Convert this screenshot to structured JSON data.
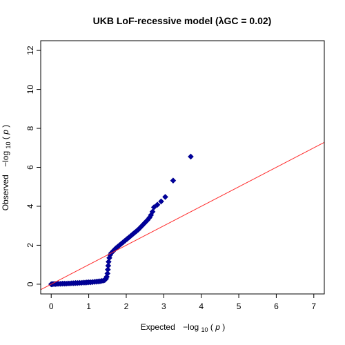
{
  "chart_data": {
    "type": "scatter",
    "title": "UKB LoF-recessive model (λGC = 0.02)",
    "xlabel": {
      "prefix": "Expected",
      "minus_log": "−log",
      "sub": "10",
      "open": "(",
      "var": "p",
      "close": ")"
    },
    "ylabel": {
      "prefix": "Observed",
      "minus_log": "−log",
      "sub": "10",
      "open": "(",
      "var": "p",
      "close": ")"
    },
    "xlim": [
      -0.28,
      7.28
    ],
    "ylim": [
      -0.5,
      12.5
    ],
    "xticks": [
      0,
      1,
      2,
      3,
      4,
      5,
      6,
      7
    ],
    "yticks": [
      0,
      2,
      4,
      6,
      8,
      10,
      12
    ],
    "grid": false,
    "legend": "none",
    "point_color": "#00008b",
    "point_fill": "#0000a0",
    "line_color": "#ff2a2a",
    "reference_line": {
      "intercept": 0,
      "slope": 1
    },
    "points": [
      {
        "x": 0.0,
        "y": 0.0
      },
      {
        "x": 0.02,
        "y": 0.0
      },
      {
        "x": 0.05,
        "y": 0.01
      },
      {
        "x": 0.08,
        "y": 0.01
      },
      {
        "x": 0.12,
        "y": 0.01
      },
      {
        "x": 0.16,
        "y": 0.02
      },
      {
        "x": 0.2,
        "y": 0.02
      },
      {
        "x": 0.25,
        "y": 0.02
      },
      {
        "x": 0.3,
        "y": 0.03
      },
      {
        "x": 0.35,
        "y": 0.03
      },
      {
        "x": 0.4,
        "y": 0.03
      },
      {
        "x": 0.45,
        "y": 0.04
      },
      {
        "x": 0.5,
        "y": 0.04
      },
      {
        "x": 0.55,
        "y": 0.05
      },
      {
        "x": 0.6,
        "y": 0.05
      },
      {
        "x": 0.65,
        "y": 0.06
      },
      {
        "x": 0.7,
        "y": 0.06
      },
      {
        "x": 0.75,
        "y": 0.07
      },
      {
        "x": 0.8,
        "y": 0.07
      },
      {
        "x": 0.85,
        "y": 0.08
      },
      {
        "x": 0.9,
        "y": 0.08
      },
      {
        "x": 0.95,
        "y": 0.09
      },
      {
        "x": 1.0,
        "y": 0.1
      },
      {
        "x": 1.05,
        "y": 0.1
      },
      {
        "x": 1.1,
        "y": 0.11
      },
      {
        "x": 1.15,
        "y": 0.12
      },
      {
        "x": 1.2,
        "y": 0.13
      },
      {
        "x": 1.25,
        "y": 0.14
      },
      {
        "x": 1.3,
        "y": 0.15
      },
      {
        "x": 1.35,
        "y": 0.17
      },
      {
        "x": 1.4,
        "y": 0.19
      },
      {
        "x": 1.43,
        "y": 0.22
      },
      {
        "x": 1.46,
        "y": 0.28
      },
      {
        "x": 1.48,
        "y": 0.38
      },
      {
        "x": 1.5,
        "y": 0.55
      },
      {
        "x": 1.51,
        "y": 0.75
      },
      {
        "x": 1.52,
        "y": 0.95
      },
      {
        "x": 1.53,
        "y": 1.15
      },
      {
        "x": 1.55,
        "y": 1.35
      },
      {
        "x": 1.57,
        "y": 1.5
      },
      {
        "x": 1.6,
        "y": 1.6
      },
      {
        "x": 1.64,
        "y": 1.68
      },
      {
        "x": 1.68,
        "y": 1.76
      },
      {
        "x": 1.72,
        "y": 1.84
      },
      {
        "x": 1.77,
        "y": 1.92
      },
      {
        "x": 1.82,
        "y": 2.0
      },
      {
        "x": 1.87,
        "y": 2.08
      },
      {
        "x": 1.92,
        "y": 2.16
      },
      {
        "x": 1.97,
        "y": 2.24
      },
      {
        "x": 2.02,
        "y": 2.32
      },
      {
        "x": 2.07,
        "y": 2.4
      },
      {
        "x": 2.12,
        "y": 2.48
      },
      {
        "x": 2.17,
        "y": 2.56
      },
      {
        "x": 2.22,
        "y": 2.64
      },
      {
        "x": 2.27,
        "y": 2.72
      },
      {
        "x": 2.32,
        "y": 2.8
      },
      {
        "x": 2.37,
        "y": 2.9
      },
      {
        "x": 2.42,
        "y": 3.0
      },
      {
        "x": 2.47,
        "y": 3.1
      },
      {
        "x": 2.52,
        "y": 3.2
      },
      {
        "x": 2.57,
        "y": 3.3
      },
      {
        "x": 2.62,
        "y": 3.42
      },
      {
        "x": 2.66,
        "y": 3.55
      },
      {
        "x": 2.7,
        "y": 3.72
      },
      {
        "x": 2.74,
        "y": 3.95
      },
      {
        "x": 2.83,
        "y": 4.08
      },
      {
        "x": 2.93,
        "y": 4.25
      },
      {
        "x": 3.04,
        "y": 4.48
      },
      {
        "x": 3.25,
        "y": 5.32
      },
      {
        "x": 3.72,
        "y": 6.55
      }
    ]
  }
}
